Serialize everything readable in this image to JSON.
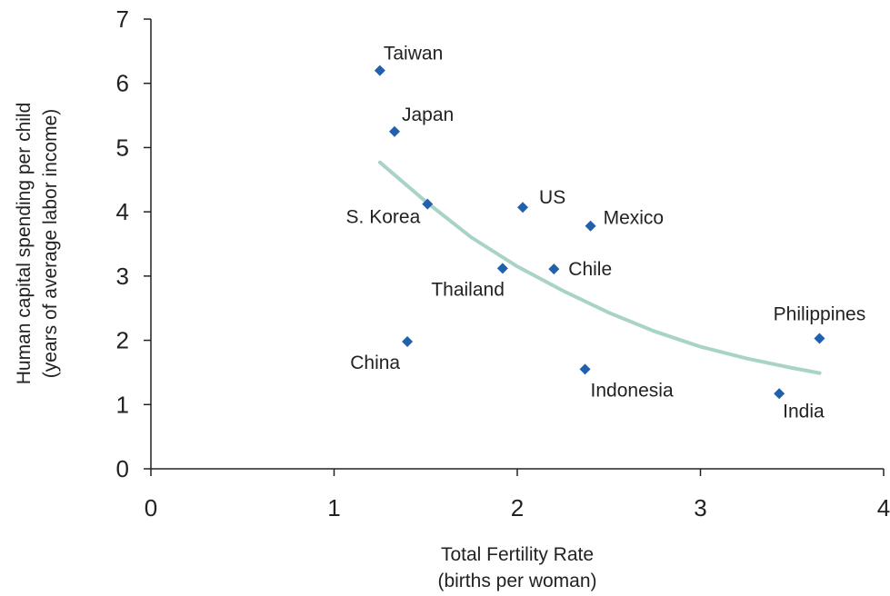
{
  "chart_data": {
    "type": "scatter",
    "xlabel": [
      "Total Fertility Rate",
      "(births per woman)"
    ],
    "ylabel": [
      "Human capital spending per child",
      "(years of average labor income)"
    ],
    "xlim": [
      0,
      4
    ],
    "ylim": [
      0,
      7
    ],
    "xticks": [
      "0",
      "1",
      "2",
      "3",
      "4"
    ],
    "yticks": [
      "0",
      "1",
      "2",
      "3",
      "4",
      "5",
      "6",
      "7"
    ],
    "grid": false,
    "legend": "none",
    "points": [
      {
        "label": "Taiwan",
        "x": 1.25,
        "y": 6.2
      },
      {
        "label": "Japan",
        "x": 1.33,
        "y": 5.25
      },
      {
        "label": "S. Korea",
        "x": 1.51,
        "y": 4.12
      },
      {
        "label": "US",
        "x": 2.03,
        "y": 4.07
      },
      {
        "label": "Mexico",
        "x": 2.4,
        "y": 3.78
      },
      {
        "label": "Thailand",
        "x": 1.92,
        "y": 3.12
      },
      {
        "label": "Chile",
        "x": 2.2,
        "y": 3.11
      },
      {
        "label": "China",
        "x": 1.4,
        "y": 1.98
      },
      {
        "label": "Indonesia",
        "x": 2.37,
        "y": 1.55
      },
      {
        "label": "Philippines",
        "x": 3.65,
        "y": 2.03
      },
      {
        "label": "India",
        "x": 3.43,
        "y": 1.17
      }
    ],
    "trendline": {
      "x": [
        1.25,
        1.5,
        1.75,
        2.0,
        2.25,
        2.5,
        2.75,
        3.0,
        3.25,
        3.5,
        3.65
      ],
      "y": [
        4.77,
        4.16,
        3.6,
        3.15,
        2.77,
        2.43,
        2.14,
        1.9,
        1.72,
        1.57,
        1.49
      ]
    },
    "colors": {
      "marker": "#2160ad",
      "trendline": "#a9d3c8",
      "axis": "#222222"
    }
  }
}
